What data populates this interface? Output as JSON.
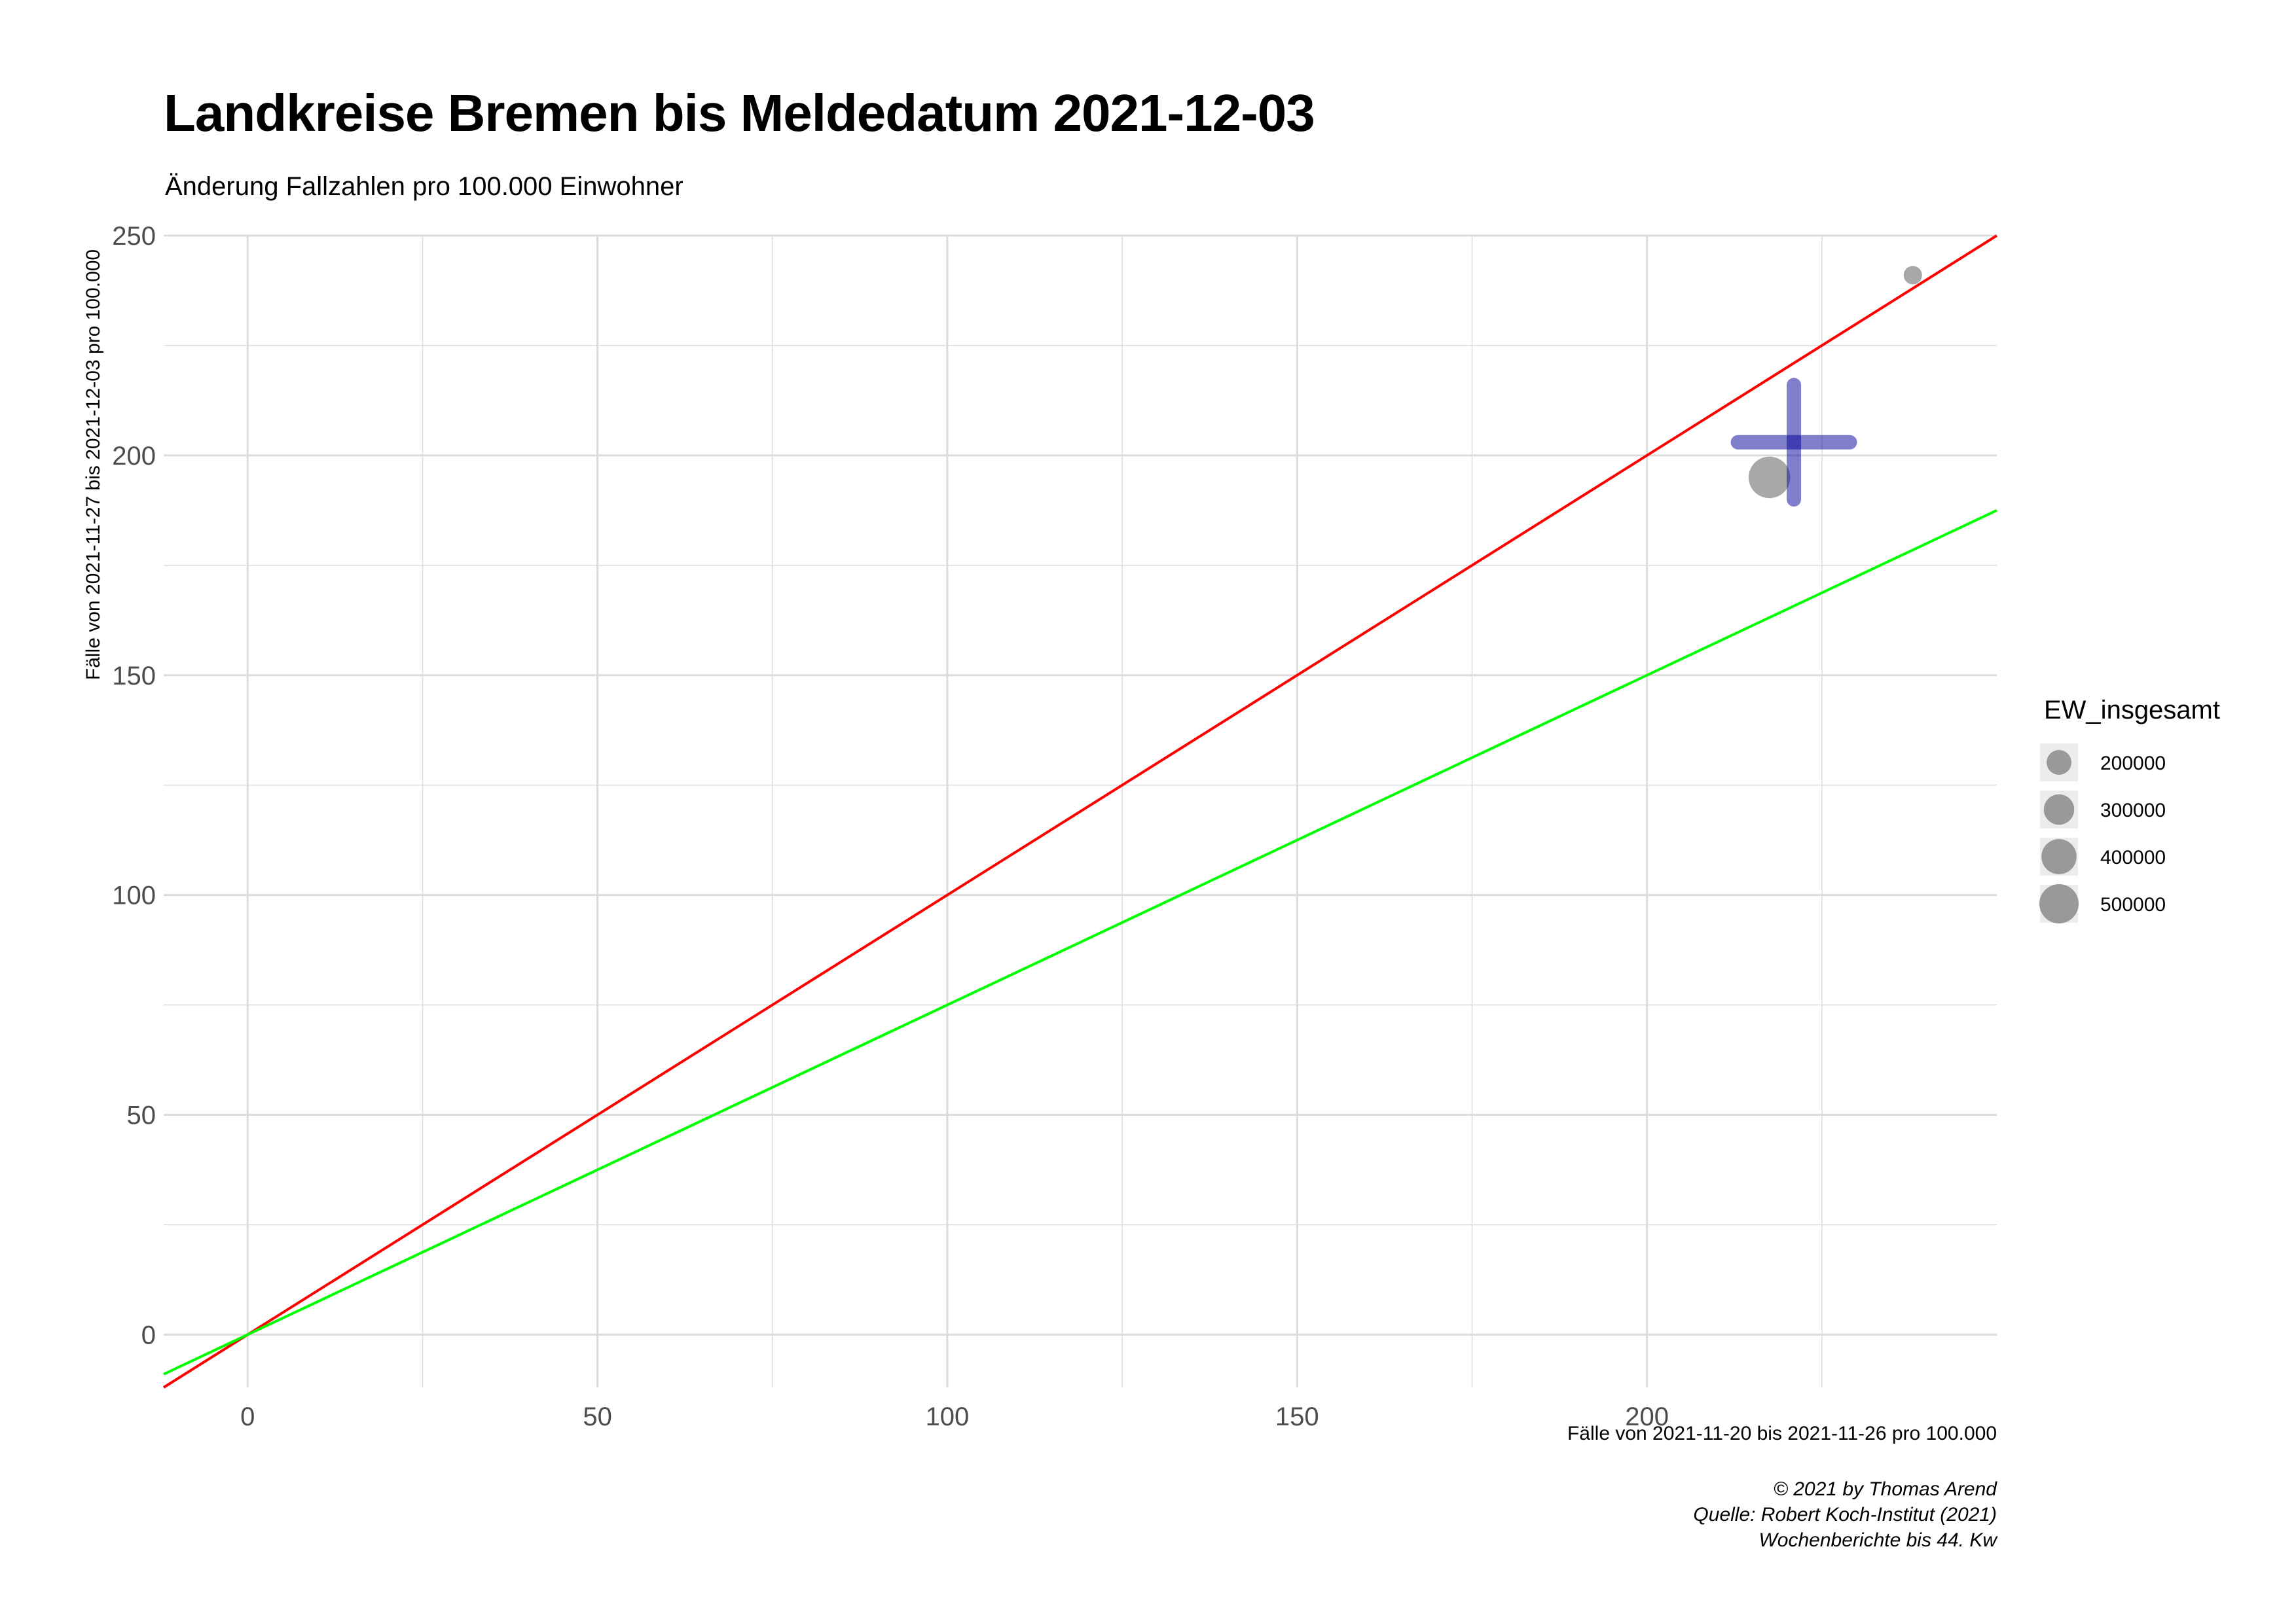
{
  "chart_data": {
    "type": "scatter",
    "title": "Landkreise Bremen bis Meldedatum 2021-12-03",
    "subtitle": "Änderung Fallzahlen pro 100.000 Einwohner",
    "xlabel": "Fälle von 2021-11-20 bis 2021-11-26 pro 100.000",
    "ylabel": "Fälle von 2021-11-27 bis 2021-12-03 pro 100.000",
    "xlim": [
      -12,
      250
    ],
    "ylim": [
      -12,
      250
    ],
    "x_ticks": [
      0,
      50,
      100,
      150,
      200
    ],
    "y_ticks": [
      0,
      50,
      100,
      150,
      200,
      250
    ],
    "grid": true,
    "points": [
      {
        "x": 217.5,
        "y": 195,
        "size": 560000
      },
      {
        "x": 238,
        "y": 241,
        "size": 110000
      }
    ],
    "crosshair": {
      "x": 221,
      "y": 203,
      "x_range": [
        213,
        229
      ],
      "y_range": [
        190,
        216
      ],
      "color": "#000099"
    },
    "reference_lines": [
      {
        "slope": 1.0,
        "intercept": 0,
        "color": "#ff0000"
      },
      {
        "slope": 0.75,
        "intercept": 0,
        "color": "#00ff00"
      }
    ],
    "legend": {
      "title": "EW_insgesamt",
      "position": "right",
      "entries": [
        {
          "label": "200000",
          "size": 200000
        },
        {
          "label": "300000",
          "size": 300000
        },
        {
          "label": "400000",
          "size": 400000
        },
        {
          "label": "500000",
          "size": 500000
        }
      ]
    },
    "caption": [
      "© 2021 by Thomas Arend",
      "Quelle: Robert Koch-Institut (2021)",
      "Wochenberichte bis 44. Kw"
    ],
    "colors": {
      "point": "#999999",
      "grid": "#dcdcdc"
    }
  }
}
